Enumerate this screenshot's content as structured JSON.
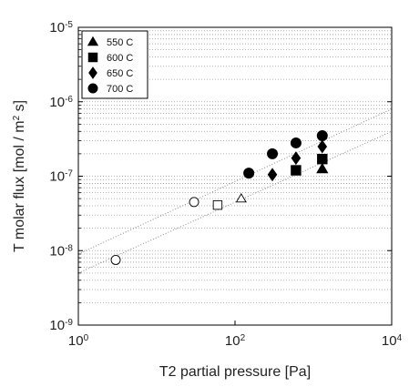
{
  "chart_data": {
    "type": "scatter",
    "title": "",
    "xlabel": "T2 partial pressure [Pa]",
    "ylabel_main": "T molar flux [mol / m",
    "ylabel_sup": "2",
    "ylabel_end": " s]",
    "xscale": "log",
    "yscale": "log",
    "xlim": [
      1,
      10000
    ],
    "ylim": [
      1e-09,
      1e-05
    ],
    "x_ticks": [
      {
        "base": "10",
        "exp": "0"
      },
      {
        "base": "10",
        "exp": "2"
      },
      {
        "base": "10",
        "exp": "4"
      }
    ],
    "y_ticks": [
      {
        "base": "10",
        "exp": "-9"
      },
      {
        "base": "10",
        "exp": "-8"
      },
      {
        "base": "10",
        "exp": "-7"
      },
      {
        "base": "10",
        "exp": "-6"
      },
      {
        "base": "10",
        "exp": "-5"
      }
    ],
    "grid": "horizontal dotted (major and minor)",
    "legend_position": "top-left",
    "series": [
      {
        "name": "550 C",
        "marker": "triangle",
        "points": [
          [
            1300,
            1.25e-07
          ]
        ]
      },
      {
        "name": "600 C",
        "marker": "square",
        "points": [
          [
            600,
            1.2e-07
          ],
          [
            1300,
            1.7e-07
          ]
        ]
      },
      {
        "name": "650 C",
        "marker": "diamond",
        "points": [
          [
            300,
            1.05e-07
          ],
          [
            600,
            1.75e-07
          ],
          [
            1300,
            2.5e-07
          ]
        ]
      },
      {
        "name": "700 C",
        "marker": "circle",
        "points": [
          [
            150,
            1.1e-07
          ],
          [
            300,
            2e-07
          ],
          [
            600,
            2.8e-07
          ],
          [
            1300,
            3.5e-07
          ]
        ]
      }
    ],
    "open_markers": [
      {
        "marker": "circle",
        "x": 3,
        "y": 7.5e-09
      },
      {
        "marker": "circle",
        "x": 30,
        "y": 4.5e-08
      },
      {
        "marker": "square",
        "x": 60,
        "y": 4.1e-08
      },
      {
        "marker": "triangle",
        "x": 120,
        "y": 5e-08
      }
    ],
    "fit_lines": [
      {
        "x": [
          1,
          10000
        ],
        "y": [
          9e-09,
          8e-07
        ]
      },
      {
        "x": [
          1,
          10000
        ],
        "y": [
          5e-09,
          4e-07
        ]
      }
    ]
  }
}
